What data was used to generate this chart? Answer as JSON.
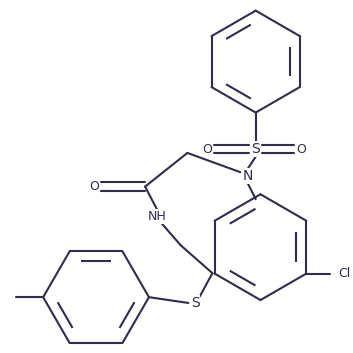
{
  "bg_color": "#ffffff",
  "line_color": "#2d2d4e",
  "line_width": 1.5,
  "figsize": [
    3.53,
    3.53
  ],
  "dpi": 100,
  "xlim": [
    0,
    353
  ],
  "ylim": [
    0,
    353
  ]
}
